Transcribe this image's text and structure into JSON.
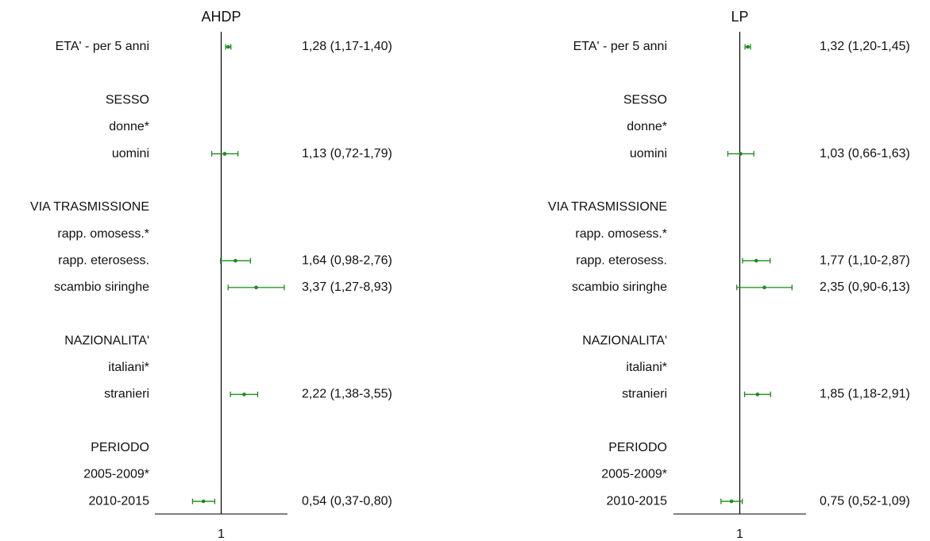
{
  "chart_data": [
    {
      "type": "forest",
      "title": "AHDP",
      "color": "#1a8a1a",
      "xscale": "log",
      "xlim": [
        0.1,
        10
      ],
      "xticks": [
        1
      ],
      "categories": [
        "ETA' - per 5 anni",
        null,
        "SESSO",
        "donne*",
        "uomini",
        null,
        "VIA TRASMISSIONE",
        "rapp. omosess.*",
        "rapp. eterosess.",
        "scambio siringhe",
        null,
        "NAZIONALITA'",
        "italiani*",
        "stranieri",
        null,
        "PERIODO",
        "2005-2009*",
        "2010-2015"
      ],
      "values": [
        1.28,
        null,
        null,
        null,
        1.13,
        null,
        null,
        null,
        1.64,
        3.37,
        null,
        null,
        null,
        2.22,
        null,
        null,
        null,
        0.54
      ],
      "lower": [
        1.17,
        null,
        null,
        null,
        0.72,
        null,
        null,
        null,
        0.98,
        1.27,
        null,
        null,
        null,
        1.38,
        null,
        null,
        null,
        0.37
      ],
      "upper": [
        1.4,
        null,
        null,
        null,
        1.79,
        null,
        null,
        null,
        2.76,
        8.93,
        null,
        null,
        null,
        3.55,
        null,
        null,
        null,
        0.8
      ],
      "value_labels": [
        "1,28 (1,17-1,40)",
        null,
        null,
        null,
        "1,13 (0,72-1,79)",
        null,
        null,
        null,
        "1,64 (0,98-2,76)",
        "3,37 (1,27-8,93)",
        null,
        null,
        null,
        "2,22 (1,38-3,55)",
        null,
        null,
        null,
        "0,54 (0,37-0,80)"
      ]
    },
    {
      "type": "forest",
      "title": "LP",
      "color": "#1a8a1a",
      "xscale": "log",
      "xlim": [
        0.1,
        10
      ],
      "xticks": [
        1
      ],
      "categories": [
        "ETA' - per 5 anni",
        null,
        "SESSO",
        "donne*",
        "uomini",
        null,
        "VIA TRASMISSIONE",
        "rapp. omosess.*",
        "rapp. eterosess.",
        "scambio siringhe",
        null,
        "NAZIONALITA'",
        "italiani*",
        "stranieri",
        null,
        "PERIODO",
        "2005-2009*",
        "2010-2015"
      ],
      "values": [
        1.32,
        null,
        null,
        null,
        1.03,
        null,
        null,
        null,
        1.77,
        2.35,
        null,
        null,
        null,
        1.85,
        null,
        null,
        null,
        0.75
      ],
      "lower": [
        1.2,
        null,
        null,
        null,
        0.66,
        null,
        null,
        null,
        1.1,
        0.9,
        null,
        null,
        null,
        1.18,
        null,
        null,
        null,
        0.52
      ],
      "upper": [
        1.45,
        null,
        null,
        null,
        1.63,
        null,
        null,
        null,
        2.87,
        6.13,
        null,
        null,
        null,
        2.91,
        null,
        null,
        null,
        1.09
      ],
      "value_labels": [
        "1,32 (1,20-1,45)",
        null,
        null,
        null,
        "1,03 (0,66-1,63)",
        null,
        null,
        null,
        "1,77 (1,10-2,87)",
        "2,35 (0,90-6,13)",
        null,
        null,
        null,
        "1,85 (1,18-2,91)",
        null,
        null,
        null,
        "0,75 (0,52-1,09)"
      ]
    }
  ]
}
